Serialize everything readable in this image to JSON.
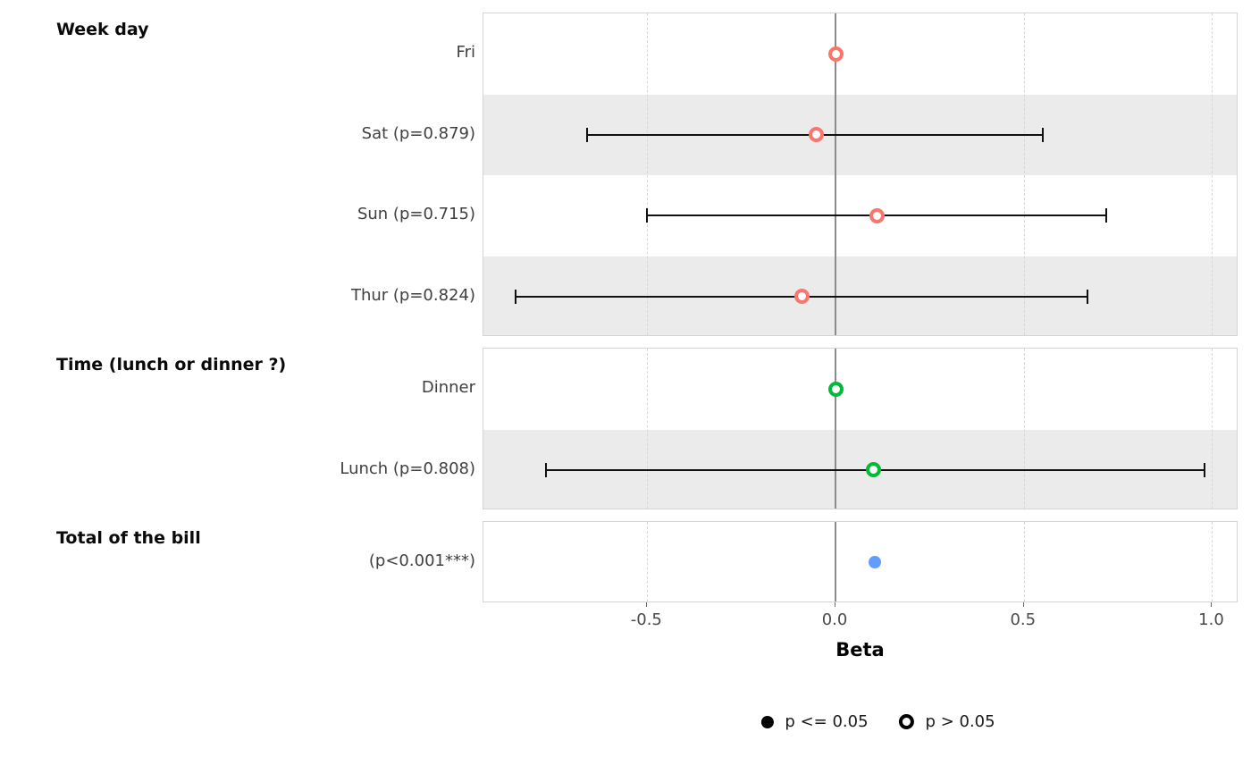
{
  "chart_data": {
    "type": "scatter",
    "subtype": "forest-plot",
    "xlabel": "Beta",
    "xlim": [
      -0.935,
      1.07
    ],
    "x_ticks": [
      -0.5,
      0,
      0.5,
      1
    ],
    "x_tick_labels": [
      "-0.5",
      "0.0",
      "0.5",
      "1.0"
    ],
    "zero_line": 0,
    "grid_dashed_at": [
      -0.5,
      0.5,
      1.0
    ],
    "grid": true,
    "legend_position": "bottom",
    "groups": [
      {
        "title": "Week day",
        "color": "#F8766D",
        "rows": [
          {
            "label": "Fri",
            "beta": 0,
            "ci_low": null,
            "ci_high": null,
            "style": "hollow"
          },
          {
            "label": "Sat (p=0.879)",
            "beta": -0.05,
            "ci_low": -0.66,
            "ci_high": 0.55,
            "style": "hollow"
          },
          {
            "label": "Sun (p=0.715)",
            "beta": 0.11,
            "ci_low": -0.5,
            "ci_high": 0.72,
            "style": "hollow"
          },
          {
            "label": "Thur (p=0.824)",
            "beta": -0.09,
            "ci_low": -0.85,
            "ci_high": 0.67,
            "style": "hollow"
          }
        ]
      },
      {
        "title": "Time (lunch or dinner ?)",
        "color": "#00BA38",
        "rows": [
          {
            "label": "Dinner",
            "beta": 0,
            "ci_low": null,
            "ci_high": null,
            "style": "hollow"
          },
          {
            "label": "Lunch (p=0.808)",
            "beta": 0.1,
            "ci_low": -0.77,
            "ci_high": 0.98,
            "style": "hollow"
          }
        ]
      },
      {
        "title": "Total of the bill",
        "color": "#619CFF",
        "rows": [
          {
            "label": "(p<0.001***)",
            "beta": 0.105,
            "ci_low": null,
            "ci_high": null,
            "style": "filled"
          }
        ]
      }
    ],
    "legend": [
      {
        "label": "p <= 0.05",
        "style": "filled"
      },
      {
        "label": "p > 0.05",
        "style": "hollow"
      }
    ]
  }
}
